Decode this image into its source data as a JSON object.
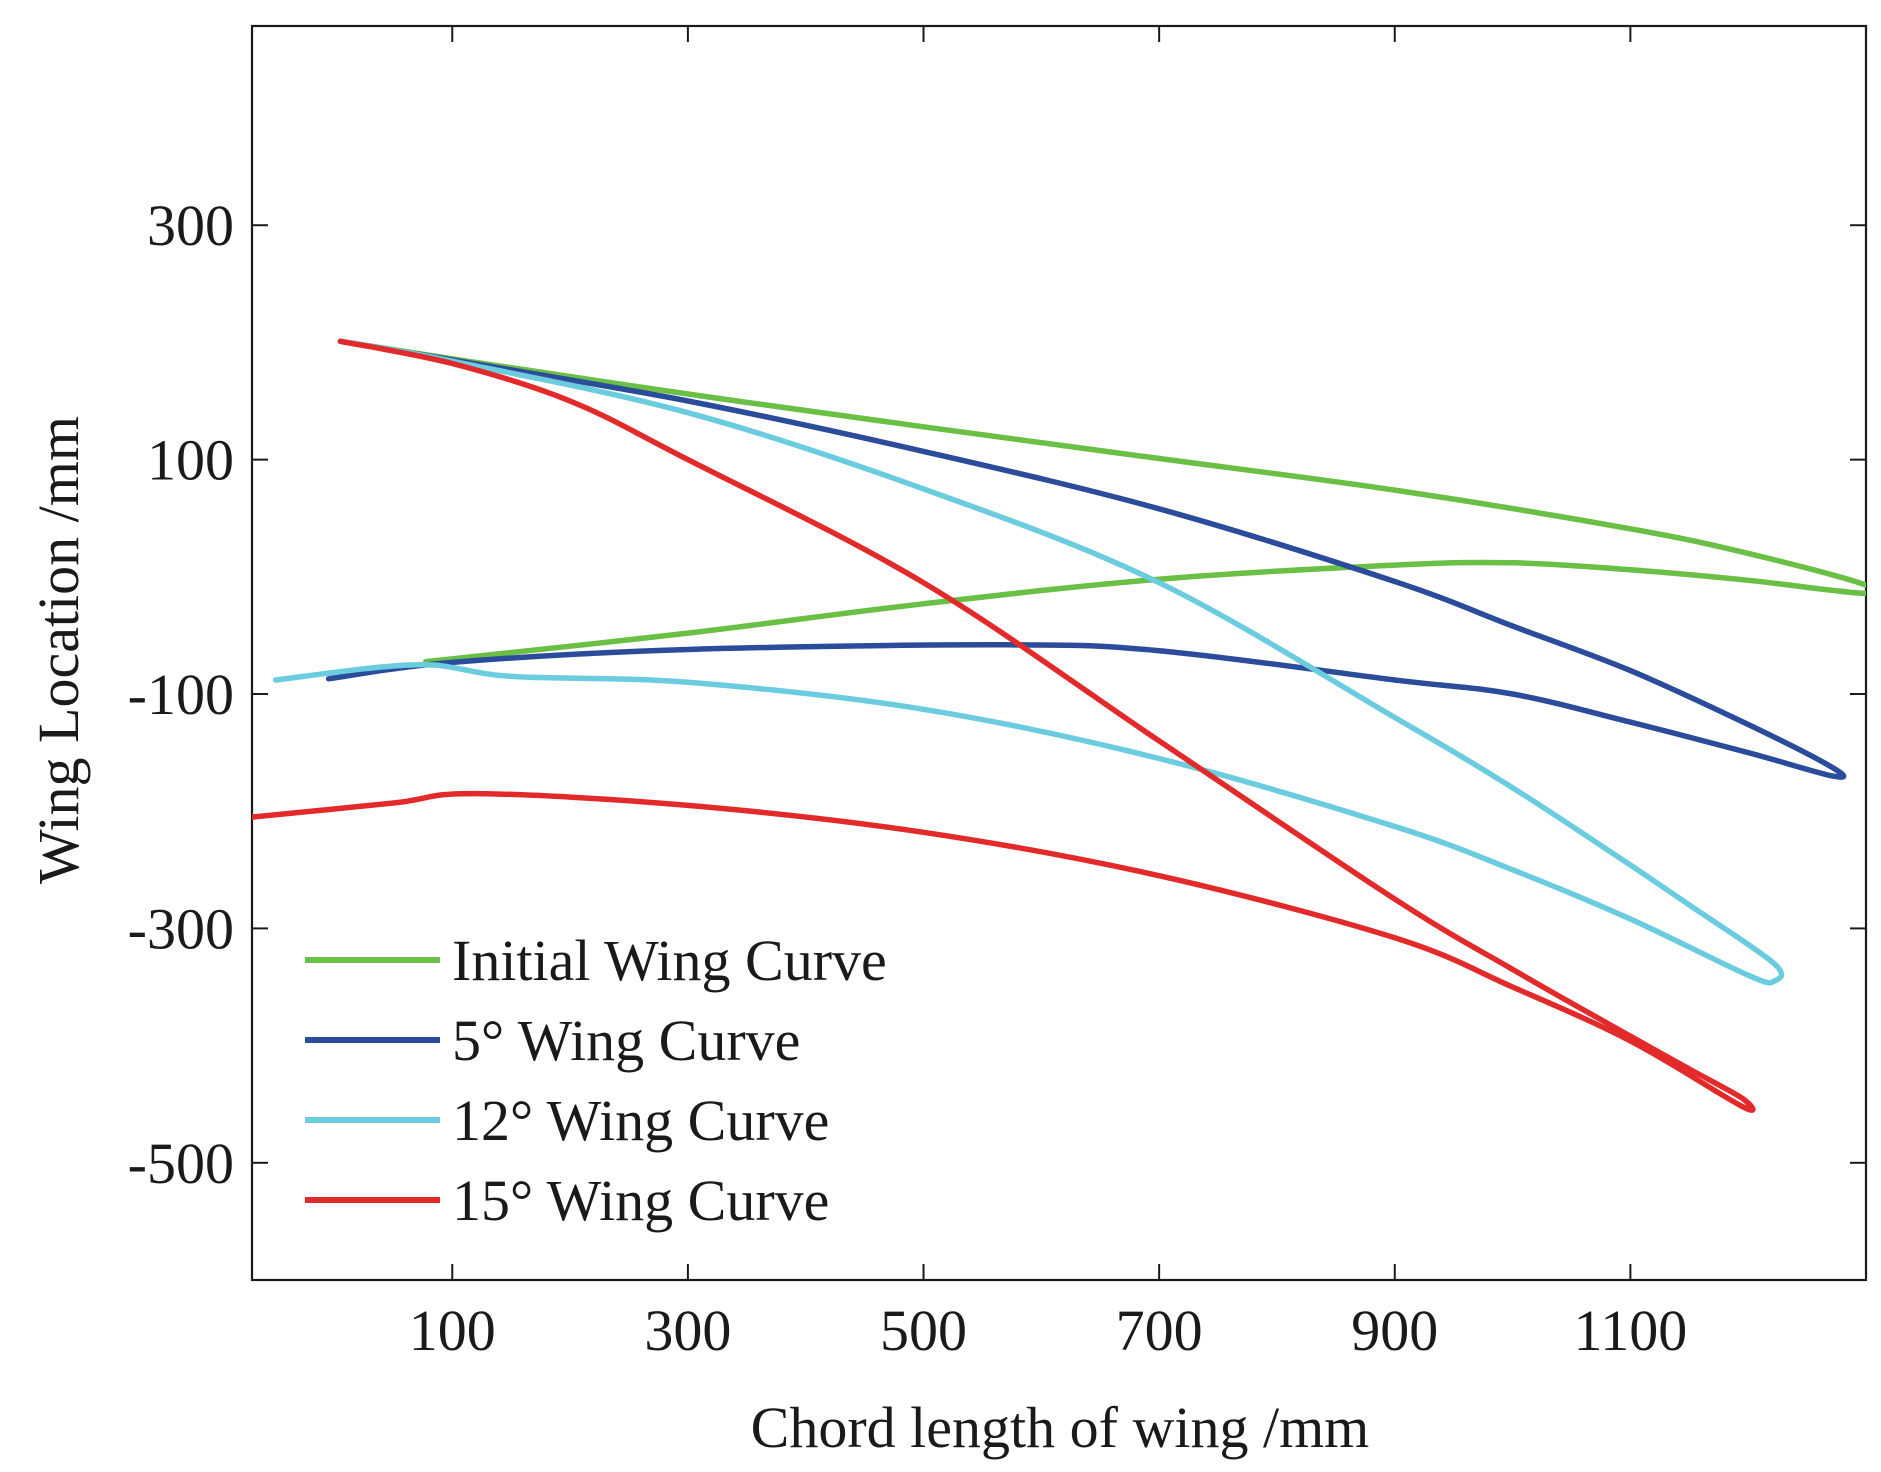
{
  "chart_data": {
    "type": "line",
    "title": "",
    "xlabel": "Chord length of wing /mm",
    "ylabel": "Wing Location /mm",
    "xlim": [
      -70,
      1300
    ],
    "ylim": [
      -600,
      470
    ],
    "xticks": [
      100,
      300,
      500,
      700,
      900,
      1100
    ],
    "yticks": [
      300,
      100,
      -100,
      -300,
      -500
    ],
    "xtick_labels": [
      "100",
      "300",
      "500",
      "700",
      "900",
      "1100"
    ],
    "ytick_labels": [
      "300",
      "100",
      "-100",
      "-300",
      "-500"
    ],
    "grid": false,
    "legend_position": "bottom-left",
    "series": [
      {
        "name": "Initial Wing Curve",
        "color": "#6abf45",
        "x": [
          5,
          100,
          300,
          500,
          700,
          900,
          1100,
          1200,
          1297,
          1297,
          1200,
          1100,
          1000,
          900,
          700,
          500,
          300,
          100,
          80
        ],
        "y": [
          201,
          186,
          156,
          128,
          101,
          74,
          41,
          20,
          -6,
          -14,
          -3,
          6,
          12,
          10,
          -2,
          -23,
          -48,
          -70,
          -72
        ]
      },
      {
        "name": "5° Wing Curve",
        "color": "#2b4c9b",
        "x": [
          5,
          100,
          300,
          500,
          700,
          900,
          1000,
          1100,
          1200,
          1272,
          1272,
          1200,
          1100,
          1000,
          900,
          700,
          570,
          300,
          100,
          -5
        ],
        "y": [
          201,
          185,
          150,
          107,
          58,
          -4,
          -42,
          -80,
          -126,
          -163,
          -170,
          -150,
          -124,
          -100,
          -88,
          -63,
          -58,
          -62,
          -73,
          -87
        ]
      },
      {
        "name": "12° Wing Curve",
        "color": "#6accde",
        "x": [
          5,
          100,
          300,
          500,
          700,
          900,
          1000,
          1100,
          1150,
          1222,
          1222,
          1200,
          1100,
          1000,
          900,
          700,
          500,
          300,
          150,
          70,
          -50
        ],
        "y": [
          201,
          184,
          140,
          75,
          -5,
          -120,
          -180,
          -246,
          -280,
          -330,
          -345,
          -340,
          -292,
          -250,
          -213,
          -155,
          -113,
          -90,
          -85,
          -75,
          -88
        ]
      },
      {
        "name": "15° Wing Curve",
        "color": "#e32a2b",
        "x": [
          5,
          100,
          200,
          300,
          500,
          700,
          900,
          1000,
          1100,
          1150,
          1195,
          1195,
          1100,
          1000,
          900,
          700,
          500,
          300,
          120,
          50,
          -70
        ],
        "y": [
          201,
          182,
          150,
          100,
          -5,
          -140,
          -275,
          -335,
          -392,
          -420,
          -445,
          -452,
          -396,
          -350,
          -308,
          -255,
          -218,
          -195,
          -185,
          -193,
          -205
        ]
      }
    ]
  }
}
